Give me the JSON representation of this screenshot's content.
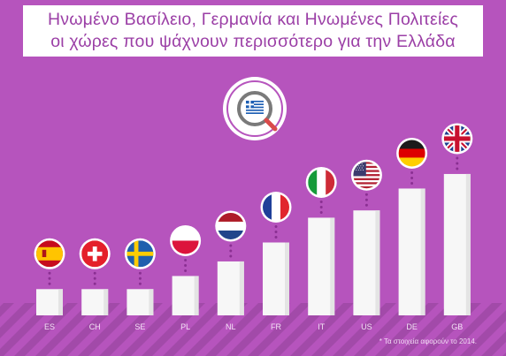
{
  "title_lines": [
    "Ηνωμένο Βασίλειο, Γερμανία και Ηνωμένες Πολιτείες",
    "οι χώρες που ψάχνουν περισσότερο για την Ελλάδα"
  ],
  "footnote": "* Τα στοιχεία αφορούν το 2014.",
  "colors": {
    "background": "#b654bd",
    "floor_stripes": "#a24aa9",
    "title_text": "#9b3fa6",
    "bar": "#f7f7f7",
    "bar_shade": "#e4e4e4",
    "label": "#f3e3f5",
    "dot": "#8a2f92"
  },
  "icons": {
    "center_emblem": "greece-flag-magnifier-icon"
  },
  "chart_data": {
    "type": "bar",
    "categories": [
      "ES",
      "CH",
      "SE",
      "PL",
      "NL",
      "FR",
      "IT",
      "US",
      "DE",
      "GB"
    ],
    "values": [
      18,
      18,
      18,
      27,
      37,
      50,
      67,
      72,
      87,
      97
    ],
    "flags": [
      "spain-flag-icon",
      "switzerland-flag-icon",
      "sweden-flag-icon",
      "poland-flag-icon",
      "netherlands-flag-icon",
      "france-flag-icon",
      "italy-flag-icon",
      "usa-flag-icon",
      "germany-flag-icon",
      "uk-flag-icon"
    ],
    "ylim": [
      0,
      100
    ],
    "grid": false,
    "legend": "none",
    "title": "",
    "xlabel": "",
    "ylabel": ""
  }
}
